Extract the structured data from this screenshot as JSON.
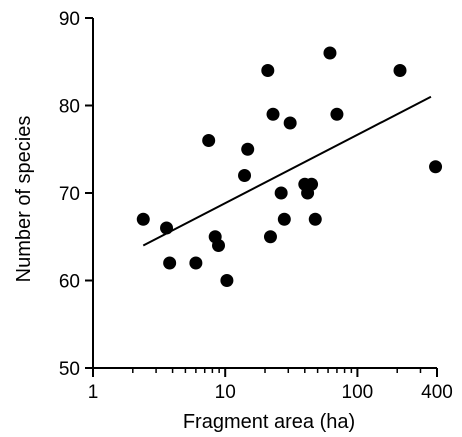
{
  "chart_data": {
    "type": "scatter",
    "title": "",
    "xlabel": "Fragment area (ha)",
    "ylabel": "Number of species",
    "x_scale": "log",
    "xlim": [
      1,
      400
    ],
    "ylim": [
      50,
      90
    ],
    "x_ticks": [
      {
        "value": 1,
        "label": "1"
      },
      {
        "value": 10,
        "label": "10"
      },
      {
        "value": 100,
        "label": "100"
      },
      {
        "value": 400,
        "label": "400"
      }
    ],
    "y_ticks": [
      {
        "value": 50,
        "label": "50"
      },
      {
        "value": 60,
        "label": "60"
      },
      {
        "value": 70,
        "label": "70"
      },
      {
        "value": 80,
        "label": "80"
      },
      {
        "value": 90,
        "label": "90"
      }
    ],
    "grid": false,
    "marker_color": "#000000",
    "points": [
      {
        "x": 2.4,
        "y": 67
      },
      {
        "x": 3.6,
        "y": 66
      },
      {
        "x": 3.8,
        "y": 62
      },
      {
        "x": 6.0,
        "y": 62
      },
      {
        "x": 7.5,
        "y": 76
      },
      {
        "x": 8.4,
        "y": 65
      },
      {
        "x": 8.9,
        "y": 64
      },
      {
        "x": 10.3,
        "y": 60
      },
      {
        "x": 14.0,
        "y": 72
      },
      {
        "x": 14.8,
        "y": 75
      },
      {
        "x": 21.0,
        "y": 84
      },
      {
        "x": 22.0,
        "y": 65
      },
      {
        "x": 23.0,
        "y": 79
      },
      {
        "x": 26.5,
        "y": 70
      },
      {
        "x": 28.0,
        "y": 67
      },
      {
        "x": 31.0,
        "y": 78
      },
      {
        "x": 40.0,
        "y": 71
      },
      {
        "x": 42.0,
        "y": 70
      },
      {
        "x": 45.0,
        "y": 71
      },
      {
        "x": 48.0,
        "y": 67
      },
      {
        "x": 62.0,
        "y": 86
      },
      {
        "x": 70.0,
        "y": 79
      },
      {
        "x": 210.0,
        "y": 84
      },
      {
        "x": 390.0,
        "y": 73
      }
    ],
    "trendline": {
      "x": [
        2.4,
        360
      ],
      "y": [
        64,
        81
      ]
    }
  }
}
